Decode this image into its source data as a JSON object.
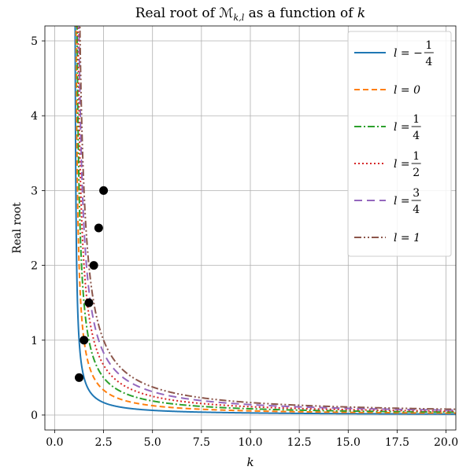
{
  "chart_data": {
    "type": "line",
    "title": "Real root of ℳ",
    "title_subscript": "k,l",
    "title_suffix": " as a function of ",
    "title_var": "k",
    "xlabel": "k",
    "ylabel": "Real root",
    "xlim": [
      -0.5,
      20.5
    ],
    "ylim": [
      -0.2,
      5.2
    ],
    "xticks": [
      0.0,
      2.5,
      5.0,
      7.5,
      10.0,
      12.5,
      15.0,
      17.5,
      20.0
    ],
    "xtick_labels": [
      "0.0",
      "2.5",
      "5.0",
      "7.5",
      "10.0",
      "12.5",
      "15.0",
      "17.5",
      "20.0"
    ],
    "yticks": [
      0,
      1,
      2,
      3,
      4,
      5
    ],
    "ytick_labels": [
      "0",
      "1",
      "2",
      "3",
      "4",
      "5"
    ],
    "grid": true,
    "legend_position": "top-right",
    "series": [
      {
        "name": "l = −1/4",
        "label_prefix": "l = −",
        "label_num": "1",
        "label_den": "4",
        "l": -0.25,
        "color": "#1f77b4",
        "style": "solid"
      },
      {
        "name": "l = 0",
        "label_prefix": "l = 0",
        "label_num": "",
        "label_den": "",
        "l": 0,
        "color": "#ff7f0e",
        "style": "dashed"
      },
      {
        "name": "l = 1/4",
        "label_prefix": "l = ",
        "label_num": "1",
        "label_den": "4",
        "l": 0.25,
        "color": "#2ca02c",
        "style": "dashdot"
      },
      {
        "name": "l = 1/2",
        "label_prefix": "l = ",
        "label_num": "1",
        "label_den": "2",
        "l": 0.5,
        "color": "#d62728",
        "style": "dotted"
      },
      {
        "name": "l = 3/4",
        "label_prefix": "l = ",
        "label_num": "3",
        "label_den": "4",
        "l": 0.75,
        "color": "#9467bd",
        "style": "longdash"
      },
      {
        "name": "l = 1",
        "label_prefix": "l = 1",
        "label_num": "",
        "label_den": "",
        "l": 1,
        "color": "#8c564b",
        "style": "dashdotdot"
      }
    ],
    "markers": {
      "color": "#000000",
      "points": [
        {
          "x": 1.25,
          "y": 0.5
        },
        {
          "x": 1.5,
          "y": 1.0
        },
        {
          "x": 1.75,
          "y": 1.5
        },
        {
          "x": 2.0,
          "y": 2.0
        },
        {
          "x": 2.25,
          "y": 2.5
        },
        {
          "x": 2.5,
          "y": 3.0
        }
      ]
    }
  }
}
